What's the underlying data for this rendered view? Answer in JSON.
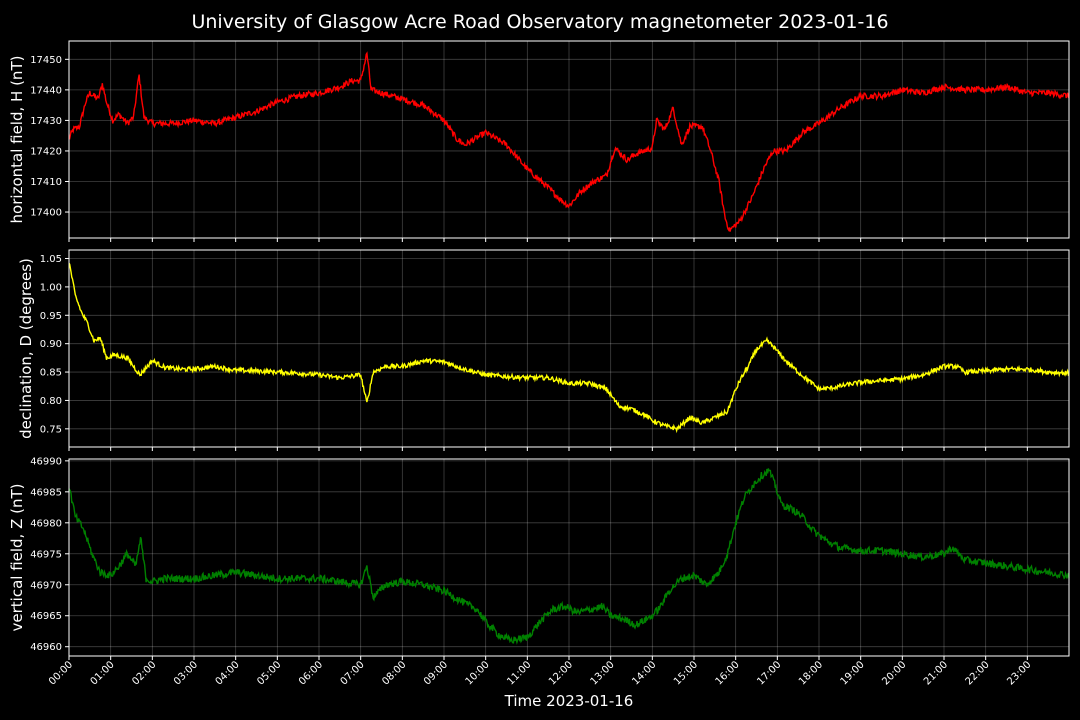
{
  "chart_data": {
    "type": "line",
    "title": "University of Glasgow Acre Road Observatory magnetometer 2023-01-16",
    "xlabel": "Time 2023-01-16",
    "x_ticks": [
      "00:00",
      "01:00",
      "02:00",
      "03:00",
      "04:00",
      "05:00",
      "06:00",
      "07:00",
      "08:00",
      "09:00",
      "10:00",
      "11:00",
      "12:00",
      "13:00",
      "14:00",
      "15:00",
      "16:00",
      "17:00",
      "18:00",
      "19:00",
      "20:00",
      "21:00",
      "22:00",
      "23:00"
    ],
    "xlim_hours": [
      0,
      24
    ],
    "grid": true,
    "panels": [
      {
        "ylabel": "horizontal field, H (nT)",
        "color": "#ff0000",
        "ylim": [
          17391.5,
          17456
        ],
        "yticks": [
          17400,
          17410,
          17420,
          17430,
          17440,
          17450
        ],
        "noise": 1.0,
        "series": [
          [
            0,
            17424
          ],
          [
            0.1,
            17427
          ],
          [
            0.25,
            17428
          ],
          [
            0.4,
            17436
          ],
          [
            0.5,
            17439
          ],
          [
            0.7,
            17437
          ],
          [
            0.8,
            17442
          ],
          [
            0.9,
            17436
          ],
          [
            1.05,
            17430
          ],
          [
            1.2,
            17432
          ],
          [
            1.4,
            17429
          ],
          [
            1.55,
            17431
          ],
          [
            1.68,
            17445
          ],
          [
            1.8,
            17431
          ],
          [
            2.0,
            17429
          ],
          [
            2.5,
            17429
          ],
          [
            3.0,
            17430
          ],
          [
            3.5,
            17429
          ],
          [
            4.0,
            17431
          ],
          [
            4.5,
            17433
          ],
          [
            5.0,
            17436
          ],
          [
            5.5,
            17438
          ],
          [
            6.0,
            17439
          ],
          [
            6.5,
            17441
          ],
          [
            6.8,
            17443
          ],
          [
            7.0,
            17443
          ],
          [
            7.15,
            17452
          ],
          [
            7.25,
            17440
          ],
          [
            7.5,
            17439
          ],
          [
            8.0,
            17437
          ],
          [
            8.5,
            17435
          ],
          [
            9.0,
            17430
          ],
          [
            9.3,
            17424
          ],
          [
            9.5,
            17422
          ],
          [
            10.0,
            17426
          ],
          [
            10.5,
            17422
          ],
          [
            11.0,
            17414
          ],
          [
            11.5,
            17408
          ],
          [
            11.8,
            17404
          ],
          [
            12.0,
            17402
          ],
          [
            12.3,
            17407
          ],
          [
            12.6,
            17410
          ],
          [
            12.9,
            17412
          ],
          [
            13.1,
            17421
          ],
          [
            13.4,
            17417
          ],
          [
            13.6,
            17419
          ],
          [
            14.0,
            17421
          ],
          [
            14.1,
            17430
          ],
          [
            14.3,
            17427
          ],
          [
            14.5,
            17434
          ],
          [
            14.7,
            17422
          ],
          [
            14.9,
            17428
          ],
          [
            15.2,
            17428
          ],
          [
            15.4,
            17420
          ],
          [
            15.6,
            17410
          ],
          [
            15.75,
            17398
          ],
          [
            15.85,
            17394
          ],
          [
            16.1,
            17397
          ],
          [
            16.4,
            17405
          ],
          [
            16.7,
            17415
          ],
          [
            16.9,
            17420
          ],
          [
            17.2,
            17420
          ],
          [
            17.6,
            17426
          ],
          [
            18.0,
            17429
          ],
          [
            18.5,
            17434
          ],
          [
            19.0,
            17438
          ],
          [
            19.5,
            17438
          ],
          [
            20.0,
            17440
          ],
          [
            20.5,
            17439
          ],
          [
            21.0,
            17441
          ],
          [
            21.5,
            17440
          ],
          [
            22.0,
            17440
          ],
          [
            22.5,
            17441
          ],
          [
            23.0,
            17439
          ],
          [
            23.5,
            17439
          ],
          [
            24.0,
            17438
          ]
        ]
      },
      {
        "ylabel": "declination, D (degrees)",
        "color": "#ffff00",
        "ylim": [
          0.718,
          1.065
        ],
        "yticks": [
          "0.75",
          "0.80",
          "0.85",
          "0.90",
          "0.95",
          "1.00",
          "1.05"
        ],
        "noise": 0.004,
        "series": [
          [
            0,
            1.045
          ],
          [
            0.15,
            0.985
          ],
          [
            0.3,
            0.955
          ],
          [
            0.45,
            0.935
          ],
          [
            0.6,
            0.905
          ],
          [
            0.75,
            0.91
          ],
          [
            0.9,
            0.875
          ],
          [
            1.1,
            0.88
          ],
          [
            1.4,
            0.875
          ],
          [
            1.7,
            0.845
          ],
          [
            2.0,
            0.87
          ],
          [
            2.3,
            0.858
          ],
          [
            2.7,
            0.855
          ],
          [
            3.0,
            0.855
          ],
          [
            3.5,
            0.86
          ],
          [
            4.0,
            0.853
          ],
          [
            4.5,
            0.852
          ],
          [
            5.0,
            0.85
          ],
          [
            5.5,
            0.848
          ],
          [
            6.0,
            0.845
          ],
          [
            6.5,
            0.84
          ],
          [
            7.0,
            0.845
          ],
          [
            7.15,
            0.795
          ],
          [
            7.3,
            0.85
          ],
          [
            7.6,
            0.86
          ],
          [
            8.0,
            0.86
          ],
          [
            8.5,
            0.87
          ],
          [
            9.0,
            0.868
          ],
          [
            9.5,
            0.855
          ],
          [
            10.0,
            0.845
          ],
          [
            10.5,
            0.842
          ],
          [
            11.0,
            0.84
          ],
          [
            11.5,
            0.84
          ],
          [
            12.0,
            0.83
          ],
          [
            12.5,
            0.83
          ],
          [
            12.9,
            0.82
          ],
          [
            13.2,
            0.79
          ],
          [
            13.5,
            0.785
          ],
          [
            13.8,
            0.775
          ],
          [
            14.0,
            0.765
          ],
          [
            14.3,
            0.755
          ],
          [
            14.6,
            0.75
          ],
          [
            14.9,
            0.77
          ],
          [
            15.2,
            0.76
          ],
          [
            15.5,
            0.77
          ],
          [
            15.8,
            0.78
          ],
          [
            15.95,
            0.81
          ],
          [
            16.1,
            0.835
          ],
          [
            16.3,
            0.86
          ],
          [
            16.5,
            0.89
          ],
          [
            16.75,
            0.905
          ],
          [
            16.9,
            0.895
          ],
          [
            17.2,
            0.87
          ],
          [
            17.5,
            0.85
          ],
          [
            17.8,
            0.832
          ],
          [
            18.0,
            0.82
          ],
          [
            18.3,
            0.822
          ],
          [
            18.7,
            0.828
          ],
          [
            19.0,
            0.832
          ],
          [
            19.5,
            0.835
          ],
          [
            20.0,
            0.838
          ],
          [
            20.5,
            0.845
          ],
          [
            21.0,
            0.86
          ],
          [
            21.3,
            0.86
          ],
          [
            21.5,
            0.85
          ],
          [
            22.0,
            0.852
          ],
          [
            22.5,
            0.855
          ],
          [
            23.0,
            0.855
          ],
          [
            23.5,
            0.85
          ],
          [
            24.0,
            0.848
          ]
        ]
      },
      {
        "ylabel": "vertical field, Z (nT)",
        "color": "#008000",
        "ylim": [
          46958.5,
          46990.3
        ],
        "yticks": [
          46960,
          46965,
          46970,
          46975,
          46980,
          46985,
          46990
        ],
        "noise": 0.6,
        "series": [
          [
            0,
            46986
          ],
          [
            0.15,
            46981
          ],
          [
            0.35,
            46979
          ],
          [
            0.55,
            46975
          ],
          [
            0.75,
            46972
          ],
          [
            1.0,
            46971.5
          ],
          [
            1.2,
            46973
          ],
          [
            1.4,
            46975
          ],
          [
            1.6,
            46973
          ],
          [
            1.72,
            46977.5
          ],
          [
            1.85,
            46971
          ],
          [
            2.0,
            46970.5
          ],
          [
            2.3,
            46971
          ],
          [
            3.0,
            46971
          ],
          [
            3.5,
            46971.5
          ],
          [
            4.0,
            46972
          ],
          [
            4.5,
            46971.5
          ],
          [
            5.0,
            46971
          ],
          [
            5.5,
            46971
          ],
          [
            6.0,
            46971
          ],
          [
            6.5,
            46970.5
          ],
          [
            7.0,
            46970
          ],
          [
            7.15,
            46973
          ],
          [
            7.3,
            46968
          ],
          [
            7.6,
            46970
          ],
          [
            8.0,
            46970.5
          ],
          [
            8.5,
            46970
          ],
          [
            9.0,
            46969
          ],
          [
            9.5,
            46967
          ],
          [
            9.8,
            46966
          ],
          [
            10.0,
            46964
          ],
          [
            10.3,
            46962
          ],
          [
            10.6,
            46961
          ],
          [
            11.0,
            46961.5
          ],
          [
            11.3,
            46964
          ],
          [
            11.6,
            46966
          ],
          [
            11.9,
            46966.5
          ],
          [
            12.2,
            46965.5
          ],
          [
            12.5,
            46966
          ],
          [
            12.8,
            46966.5
          ],
          [
            13.0,
            46965
          ],
          [
            13.3,
            46964.5
          ],
          [
            13.6,
            46963.5
          ],
          [
            14.0,
            46965
          ],
          [
            14.2,
            46966.5
          ],
          [
            14.4,
            46969
          ],
          [
            14.7,
            46971
          ],
          [
            15.0,
            46971.5
          ],
          [
            15.3,
            46970
          ],
          [
            15.6,
            46972
          ],
          [
            15.8,
            46975
          ],
          [
            16.0,
            46980
          ],
          [
            16.2,
            46984
          ],
          [
            16.4,
            46986
          ],
          [
            16.6,
            46987.5
          ],
          [
            16.8,
            46988.5
          ],
          [
            16.95,
            46986
          ],
          [
            17.1,
            46983
          ],
          [
            17.4,
            46982
          ],
          [
            17.6,
            46981
          ],
          [
            17.9,
            46978.5
          ],
          [
            18.2,
            46977
          ],
          [
            18.5,
            46976
          ],
          [
            19.0,
            46975.5
          ],
          [
            19.5,
            46975.5
          ],
          [
            20.0,
            46975
          ],
          [
            20.5,
            46974.5
          ],
          [
            21.0,
            46975
          ],
          [
            21.2,
            46976
          ],
          [
            21.5,
            46974
          ],
          [
            22.0,
            46973.5
          ],
          [
            22.5,
            46973
          ],
          [
            23.0,
            46972.5
          ],
          [
            23.5,
            46972
          ],
          [
            24.0,
            46971.5
          ]
        ]
      }
    ]
  }
}
